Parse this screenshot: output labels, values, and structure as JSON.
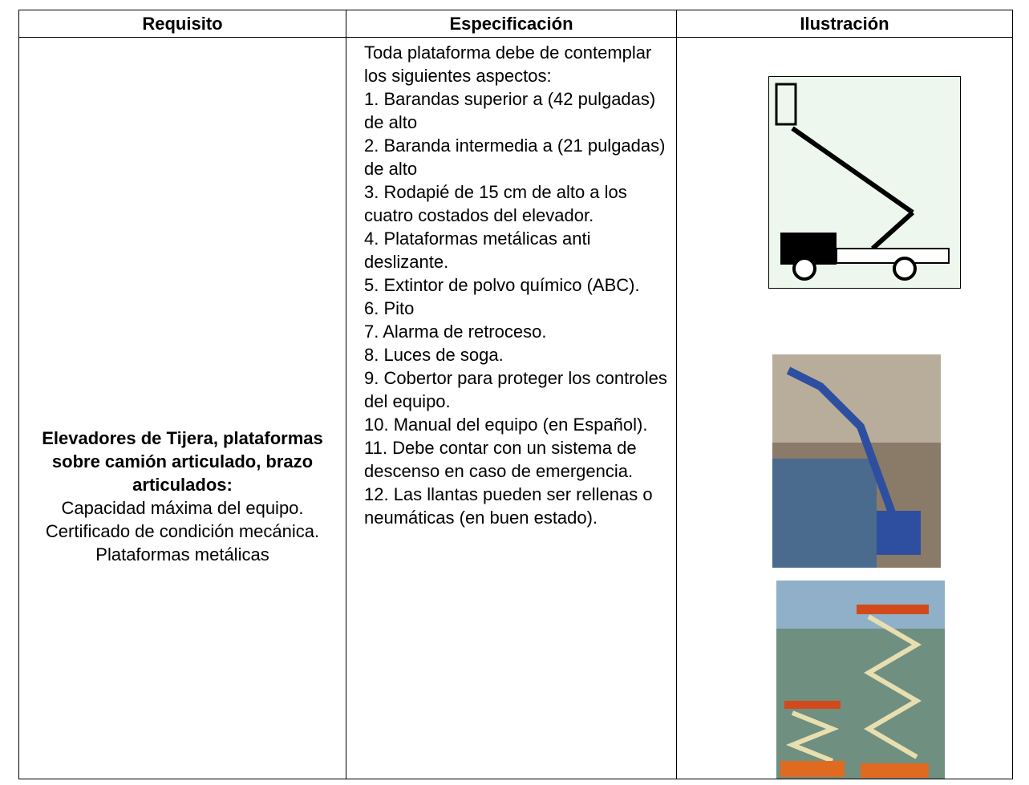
{
  "table": {
    "header": [
      "Requisito",
      "Especificación",
      "Ilustración"
    ],
    "requirement": {
      "title": "Elevadores de Tijera, plataformas sobre camión articulado, brazo articulados:",
      "lines": [
        "Capacidad máxima del equipo.",
        "Certificado de condición mecánica.",
        "Plataformas metálicas"
      ]
    },
    "specification": {
      "intro": "Toda plataforma debe de contemplar los siguientes aspectos:",
      "items": [
        "1. Barandas superior a (42 pulgadas) de alto",
        "2. Baranda intermedia a (21 pulgadas) de alto",
        "3. Rodapié de 15 cm de alto a los cuatro costados del elevador.",
        "4. Plataformas metálicas  anti deslizante.",
        "5. Extintor de polvo químico (ABC).",
        "6. Pito",
        "7. Alarma de retroceso.",
        "8. Luces de soga.",
        "9. Cobertor para proteger los controles del equipo.",
        "10. Manual del equipo (en Español).",
        "11. Debe contar con un sistema de descenso en caso de emergencia.",
        "12. Las llantas pueden ser rellenas o neumáticas (en buen estado)."
      ]
    }
  }
}
